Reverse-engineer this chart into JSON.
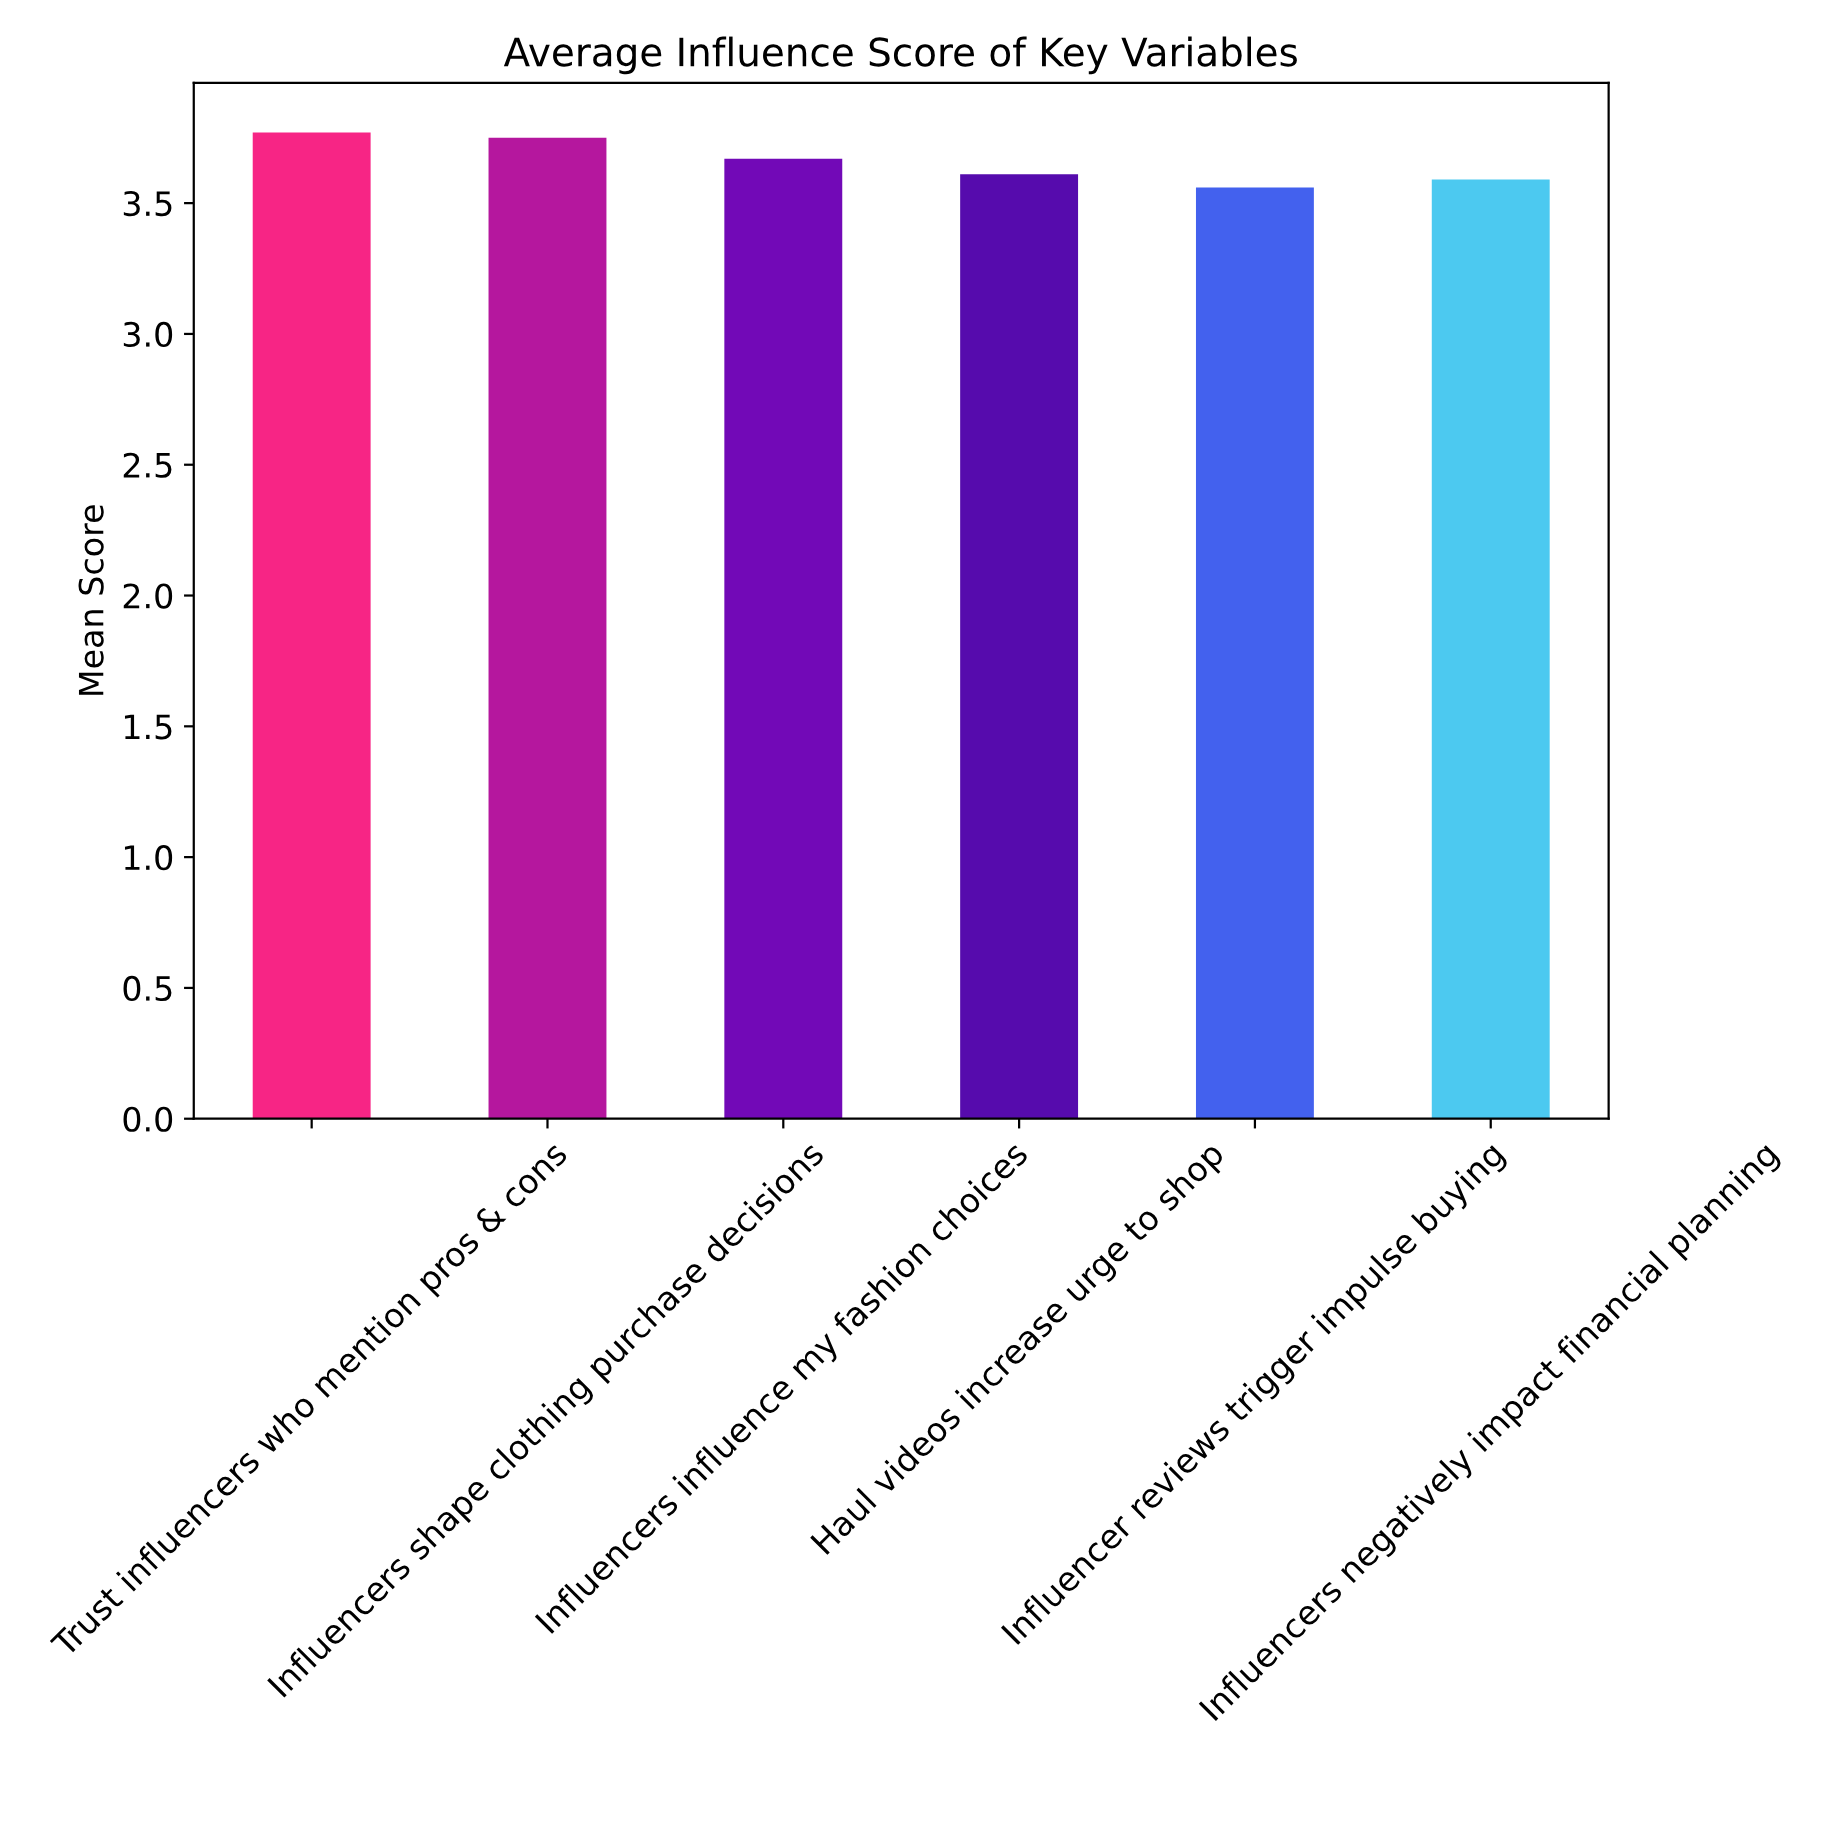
{
  "chart_data": {
    "type": "bar",
    "title": "Average Influence Score of Key Variables",
    "ylabel": "Mean Score",
    "categories": [
      "Trust influencers who mention pros & cons",
      "Influencers shape clothing purchase decisions",
      "Influencers influence my fashion choices",
      "Haul videos increase urge to shop",
      "Influencer reviews trigger impulse buying",
      "Influencers negatively impact financial planning"
    ],
    "values": [
      3.77,
      3.75,
      3.67,
      3.61,
      3.56,
      3.59
    ],
    "colors": [
      "#f72585",
      "#b5179e",
      "#7209b7",
      "#560bad",
      "#4361ee",
      "#4cc9f0"
    ],
    "ylim": [
      0,
      3.96
    ],
    "yticks": [
      {
        "value": 0,
        "label": "0.0"
      },
      0.5,
      {
        "value": 1,
        "label": "1.0"
      },
      1.5,
      {
        "value": 2,
        "label": "2.0"
      },
      2.5,
      {
        "value": 3,
        "label": "3.0"
      },
      3.5
    ],
    "grid": false,
    "legend": false
  }
}
